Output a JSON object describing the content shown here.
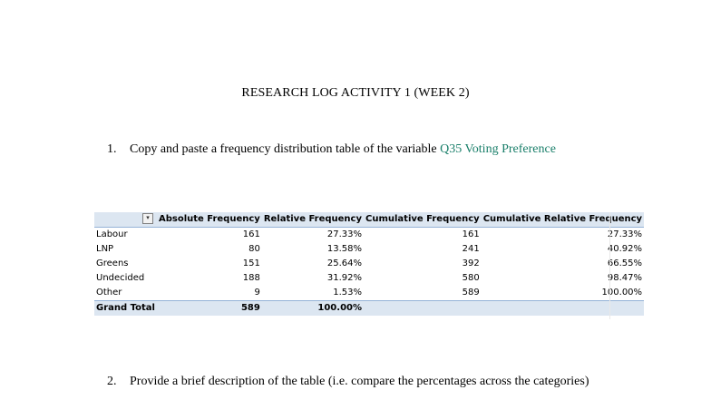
{
  "document": {
    "title": "RESEARCH LOG ACTIVITY 1 (WEEK 2)",
    "question1": {
      "number": "1.",
      "text": "Copy and paste a frequency distribution table of the variable ",
      "link": "Q35 Voting Preference"
    },
    "question2": {
      "number": "2.",
      "text": "Provide a brief description of the table (i.e. compare the percentages across the categories)"
    }
  },
  "table": {
    "filter_icon": "filter-dropdown-icon",
    "headers": [
      "",
      "Absolute Frequency",
      "Relative Frequency",
      "Cumulative Frequency",
      "Cumulative Relative Frequency"
    ],
    "rows": [
      [
        "Labour",
        "161",
        "27.33%",
        "161",
        "27.33%"
      ],
      [
        "LNP",
        "80",
        "13.58%",
        "241",
        "40.92%"
      ],
      [
        "Greens",
        "151",
        "25.64%",
        "392",
        "66.55%"
      ],
      [
        "Undecided",
        "188",
        "31.92%",
        "580",
        "98.47%"
      ],
      [
        "Other",
        "9",
        "1.53%",
        "589",
        "100.00%"
      ]
    ],
    "total": [
      "Grand Total",
      "589",
      "100.00%",
      "",
      ""
    ]
  },
  "colors": {
    "link": "#1a7f6a",
    "header_bg": "#dce6f1"
  }
}
